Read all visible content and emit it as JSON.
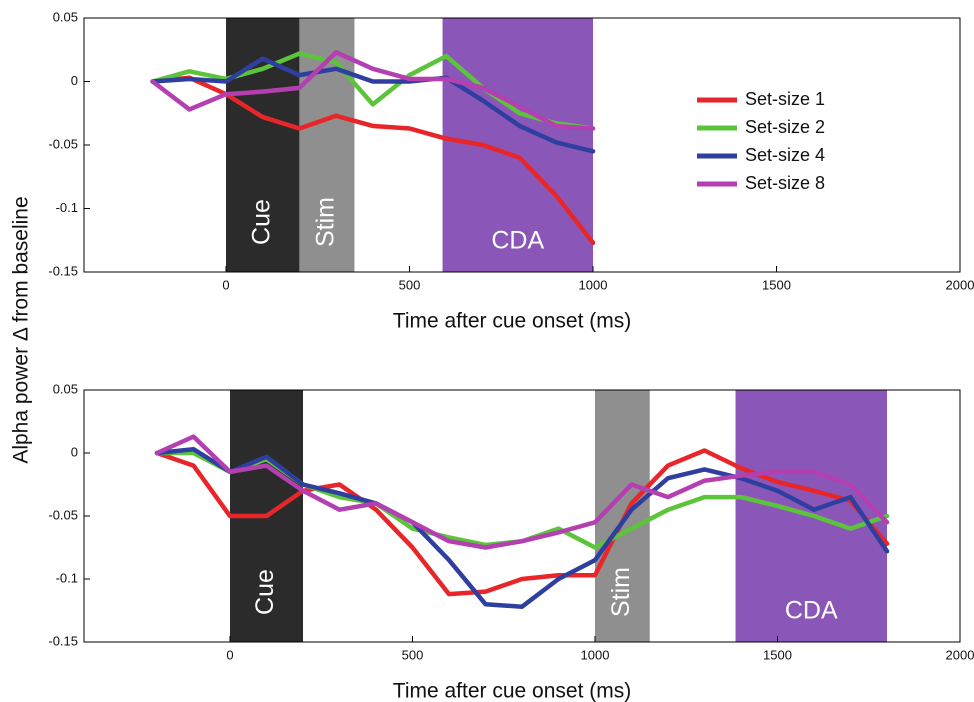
{
  "chart_data": [
    {
      "type": "line",
      "xlabel": "Time after cue onset (ms)",
      "ylabel": "Alpha power Δ from baseline",
      "xlim": [
        -387,
        2000
      ],
      "ylim": [
        -0.15,
        0.05
      ],
      "xticks": [
        0,
        500,
        1000,
        1500,
        2000
      ],
      "yticks": [
        -0.15,
        -0.1,
        -0.05,
        0,
        0.05
      ],
      "legend": "right",
      "regions": [
        {
          "label": "Cue",
          "start": 0,
          "end": 200,
          "color": "#2b2b2b",
          "vertical": true
        },
        {
          "label": "Stim",
          "start": 200,
          "end": 350,
          "color": "#8f8f8f",
          "vertical": true
        },
        {
          "label": "CDA",
          "start": 590,
          "end": 1000,
          "color": "#8a57b8",
          "vertical": false
        }
      ],
      "x": [
        -200,
        -100,
        0,
        100,
        200,
        300,
        400,
        500,
        600,
        700,
        800,
        900,
        1000
      ],
      "series": [
        {
          "name": "Set-size 1",
          "color": "#e8262a",
          "values": [
            0,
            0.003,
            -0.01,
            -0.028,
            -0.037,
            -0.027,
            -0.035,
            -0.037,
            -0.045,
            -0.05,
            -0.06,
            -0.09,
            -0.127
          ]
        },
        {
          "name": "Set-size 2",
          "color": "#5cc43a",
          "values": [
            0,
            0.008,
            0.002,
            0.01,
            0.022,
            0.015,
            -0.018,
            0.005,
            0.02,
            -0.005,
            -0.025,
            -0.033,
            -0.037
          ]
        },
        {
          "name": "Set-size 4",
          "color": "#2f3fa0",
          "values": [
            0,
            0.002,
            0,
            0.018,
            0.005,
            0.01,
            0,
            0,
            0.003,
            -0.015,
            -0.035,
            -0.048,
            -0.055
          ]
        },
        {
          "name": "Set-size 8",
          "color": "#b43fb0",
          "values": [
            0,
            -0.022,
            -0.01,
            -0.008,
            -0.005,
            0.023,
            0.01,
            0.002,
            0.002,
            -0.005,
            -0.02,
            -0.035,
            -0.037
          ]
        }
      ]
    },
    {
      "type": "line",
      "xlabel": "Time after cue onset (ms)",
      "xlim": [
        -400,
        2000
      ],
      "ylim": [
        -0.15,
        0.05
      ],
      "xticks": [
        0,
        500,
        1000,
        1500,
        2000
      ],
      "yticks": [
        -0.15,
        -0.1,
        -0.05,
        0,
        0.05
      ],
      "regions": [
        {
          "label": "Cue",
          "start": 0,
          "end": 200,
          "color": "#2b2b2b",
          "vertical": true
        },
        {
          "label": "Stim",
          "start": 1000,
          "end": 1150,
          "color": "#8f8f8f",
          "vertical": true
        },
        {
          "label": "CDA",
          "start": 1385,
          "end": 1800,
          "color": "#8a57b8",
          "vertical": false
        }
      ],
      "x": [
        -200,
        -100,
        0,
        100,
        200,
        300,
        400,
        500,
        600,
        700,
        800,
        900,
        1000,
        1100,
        1200,
        1300,
        1400,
        1500,
        1600,
        1700,
        1800
      ],
      "series": [
        {
          "color": "#e8262a",
          "values": [
            0,
            -0.01,
            -0.05,
            -0.05,
            -0.03,
            -0.025,
            -0.045,
            -0.075,
            -0.112,
            -0.11,
            -0.1,
            -0.097,
            -0.097,
            -0.04,
            -0.01,
            0.002,
            -0.012,
            -0.023,
            -0.03,
            -0.038,
            -0.072
          ]
        },
        {
          "color": "#5cc43a",
          "values": [
            0,
            0,
            -0.015,
            -0.005,
            -0.025,
            -0.035,
            -0.04,
            -0.06,
            -0.067,
            -0.073,
            -0.07,
            -0.06,
            -0.075,
            -0.06,
            -0.045,
            -0.035,
            -0.035,
            -0.042,
            -0.05,
            -0.06,
            -0.05
          ]
        },
        {
          "color": "#2f3fa0",
          "values": [
            0,
            0.003,
            -0.015,
            -0.003,
            -0.025,
            -0.032,
            -0.04,
            -0.055,
            -0.085,
            -0.12,
            -0.122,
            -0.1,
            -0.085,
            -0.045,
            -0.02,
            -0.013,
            -0.02,
            -0.03,
            -0.045,
            -0.035,
            -0.078
          ]
        },
        {
          "color": "#b43fb0",
          "values": [
            0,
            0.013,
            -0.015,
            -0.01,
            -0.03,
            -0.045,
            -0.04,
            -0.055,
            -0.07,
            -0.075,
            -0.07,
            -0.063,
            -0.055,
            -0.025,
            -0.035,
            -0.022,
            -0.018,
            -0.015,
            -0.015,
            -0.025,
            -0.055
          ]
        }
      ]
    }
  ]
}
